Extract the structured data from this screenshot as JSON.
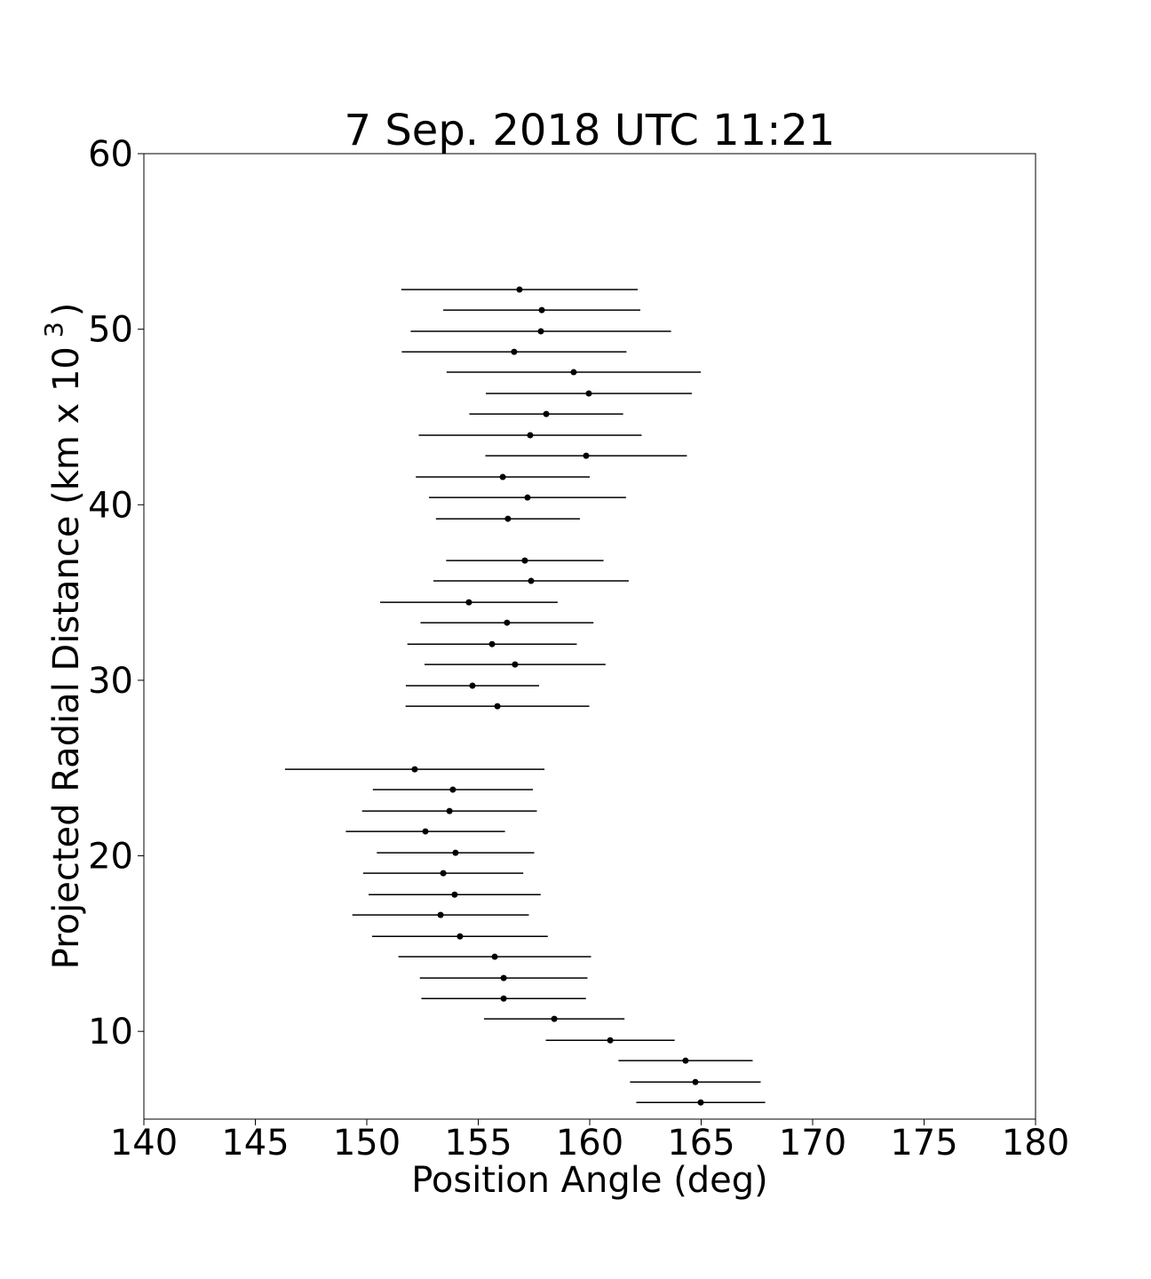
{
  "chart_data": {
    "type": "errorbar",
    "title": "7 Sep. 2018 UTC 11:21",
    "xlabel": "Position Angle (deg)",
    "ylabel": {
      "text": "Projected Radial Distance (km x 10",
      "superscript": "3",
      "close": ")"
    },
    "xlim": [
      140,
      180
    ],
    "xticks": [
      140,
      145,
      150,
      155,
      160,
      165,
      170,
      175,
      180
    ],
    "ylim": [
      5,
      60
    ],
    "yticks": [
      10,
      20,
      30,
      40,
      50,
      60
    ],
    "grid": false,
    "series": [
      {
        "color": "#000000",
        "x": [
          156.85,
          157.85,
          157.81,
          156.61,
          159.28,
          159.96,
          158.05,
          157.33,
          159.84,
          156.1,
          157.21,
          156.33,
          157.09,
          157.37,
          154.58,
          156.29,
          155.62,
          156.65,
          154.74,
          155.86,
          152.15,
          153.86,
          153.71,
          152.63,
          153.98,
          153.43,
          153.94,
          153.31,
          154.18,
          155.74,
          156.14,
          156.14,
          158.41,
          160.92,
          164.3,
          164.74,
          164.98
        ],
        "y": [
          52.26,
          51.09,
          49.88,
          48.71,
          47.55,
          46.34,
          45.17,
          43.96,
          42.79,
          41.58,
          40.41,
          39.2,
          36.82,
          35.66,
          34.44,
          33.28,
          32.06,
          30.9,
          29.69,
          28.52,
          24.93,
          23.77,
          22.55,
          21.39,
          20.17,
          19.01,
          17.79,
          16.63,
          15.41,
          14.25,
          13.04,
          11.87,
          10.71,
          9.49,
          8.33,
          7.11,
          5.95
        ],
        "xerr": [
          5.3,
          4.42,
          5.84,
          5.04,
          5.7,
          4.62,
          3.45,
          5.0,
          4.52,
          3.9,
          4.42,
          3.23,
          3.53,
          4.38,
          3.98,
          3.88,
          3.8,
          4.06,
          2.99,
          4.12,
          5.82,
          3.59,
          3.92,
          3.57,
          3.53,
          3.59,
          3.86,
          3.96,
          3.94,
          4.32,
          3.76,
          3.69,
          3.15,
          2.89,
          3.01,
          2.93,
          2.89
        ]
      }
    ]
  }
}
